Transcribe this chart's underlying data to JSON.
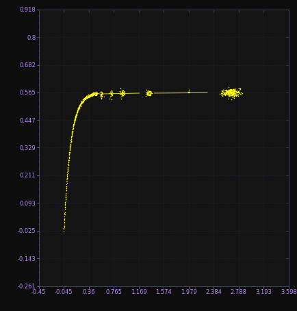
{
  "background_color": "#0d0d0d",
  "plot_bg_color": "#141414",
  "grid_color": "#2a2a50",
  "line_color": "#ffff00",
  "x_ticks": [
    -0.45,
    -0.045,
    0.36,
    0.765,
    1.169,
    1.574,
    1.979,
    2.384,
    2.788,
    3.193,
    3.598
  ],
  "y_ticks": [
    -0.261,
    -0.143,
    -0.025,
    0.093,
    0.211,
    0.329,
    0.447,
    0.565,
    0.682,
    0.8,
    0.918
  ],
  "xlim": [
    -0.45,
    3.598
  ],
  "ylim": [
    -0.261,
    0.918
  ],
  "tick_color": "#bb88ff",
  "tick_fontsize": 6.0,
  "spine_color": "#444466"
}
